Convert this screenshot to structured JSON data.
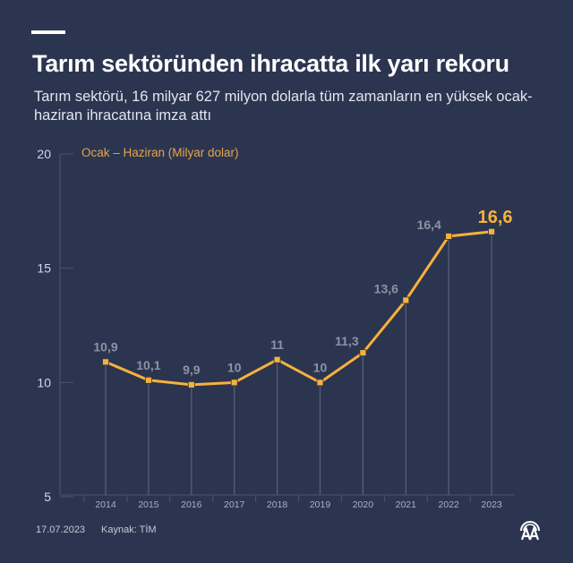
{
  "header": {
    "title": "Tarım sektöründen ihracatta ilk yarı rekoru",
    "subtitle": "Tarım sektörü, 16 milyar 627 milyon dolarla tüm zamanların en yüksek ocak-haziran ihracatına imza attı"
  },
  "legend": {
    "label": "Ocak – Haziran (Milyar dolar)"
  },
  "colors": {
    "background": "#2c3550",
    "line": "#f7b23b",
    "legend": "#e7a44a",
    "grid": "#4a5270"
  },
  "chart_data": {
    "type": "line",
    "title": "Tarım sektöründen ihracatta ilk yarı rekoru",
    "subtitle": "Tarım sektörü, 16 milyar 627 milyon dolarla tüm zamanların en yüksek ocak-haziran ihracatına imza attı",
    "xlabel": "",
    "ylabel": "Ocak – Haziran (Milyar dolar)",
    "categories": [
      "2014",
      "2015",
      "2016",
      "2017",
      "2018",
      "2019",
      "2020",
      "2021",
      "2022",
      "2023"
    ],
    "series": [
      {
        "name": "Ocak – Haziran (Milyar dolar)",
        "values": [
          10.9,
          10.1,
          9.9,
          10,
          11,
          10,
          11.3,
          13.6,
          16.4,
          16.6
        ]
      }
    ],
    "data_labels": [
      "10,9",
      "10,1",
      "9,9",
      "10",
      "11",
      "10",
      "11,3",
      "13,6",
      "16,4",
      "16,6"
    ],
    "yticks": [
      "5",
      "10",
      "15",
      "20"
    ],
    "ylim": [
      5,
      20
    ],
    "grid": false,
    "legend_position": "top-left"
  },
  "footer": {
    "date": "17.07.2023",
    "source": "Kaynak: TİM",
    "logo": "aa-logo-icon"
  }
}
